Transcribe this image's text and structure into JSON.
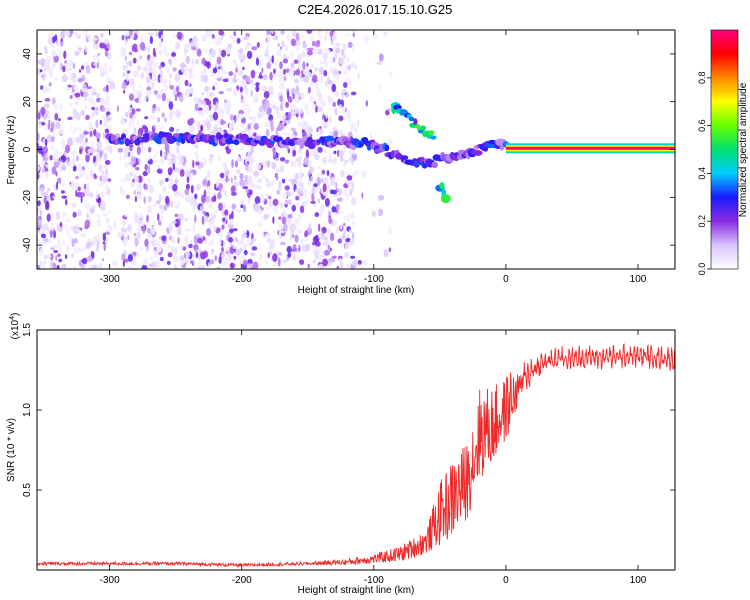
{
  "title": "C2E4.2026.017.15.10.G25",
  "chart_data": [
    {
      "type": "heatmap",
      "title": "C2E4.2026.017.15.10.G25",
      "xlabel": "Height of straight line (km)",
      "ylabel": "Frequency (Hz)",
      "xlim": [
        -355,
        128
      ],
      "ylim": [
        -50,
        50
      ],
      "xticks": [
        -300,
        -200,
        -100,
        0,
        100
      ],
      "yticks": [
        -40,
        -20,
        0,
        20,
        40
      ],
      "colorbar": {
        "label": "Normalized spectral amplitude",
        "range": [
          0,
          1
        ],
        "ticks": [
          0.0,
          0.2,
          0.4,
          0.6,
          0.8
        ],
        "colors": [
          "#ffffff",
          "#d8c4ff",
          "#8a2be2",
          "#1a1aff",
          "#00ccff",
          "#00e070",
          "#66ff00",
          "#ffff00",
          "#ff8800",
          "#ff0000",
          "#ff0080"
        ]
      },
      "features": [
        {
          "name": "noise_region",
          "x_range": [
            -355,
            -115
          ],
          "freq_range": [
            -50,
            50
          ],
          "amplitude": 0.1
        },
        {
          "name": "noise_gap",
          "x_range": [
            -300,
            -290
          ],
          "amplitude": 0.0
        },
        {
          "name": "main_ridge",
          "points": [
            [
              -300,
              4
            ],
            [
              -250,
              5
            ],
            [
              -200,
              4
            ],
            [
              -150,
              3
            ],
            [
              -120,
              3
            ],
            [
              -100,
              2
            ],
            [
              -80,
              -3
            ],
            [
              -60,
              -6
            ],
            [
              -40,
              -3
            ],
            [
              -20,
              0
            ],
            [
              -5,
              3
            ],
            [
              0,
              2
            ]
          ],
          "amplitude": 0.25
        },
        {
          "name": "upper_branch",
          "points": [
            [
              -85,
              18
            ],
            [
              -75,
              14
            ],
            [
              -65,
              9
            ],
            [
              -55,
              5
            ]
          ],
          "amplitude": 0.45
        },
        {
          "name": "lower_branch",
          "points": [
            [
              -50,
              -15
            ],
            [
              -45,
              -20
            ]
          ],
          "amplitude": 0.4
        },
        {
          "name": "carrier_line",
          "x_range": [
            0,
            128
          ],
          "freq": 0.5,
          "amplitude": 1.0
        }
      ]
    },
    {
      "type": "line",
      "xlabel": "Height of straight line (km)",
      "ylabel": "SNR (10 * v/v)",
      "y_multiplier": "(x10^4)",
      "y_multiplier_base": "(x10",
      "y_multiplier_exp": "4",
      "y_multiplier_close": ")",
      "xlim": [
        -355,
        128
      ],
      "ylim": [
        0,
        1.5
      ],
      "xticks": [
        -300,
        -200,
        -100,
        0,
        100
      ],
      "yticks": [
        0.5,
        1.0,
        1.5
      ],
      "series": [
        {
          "name": "SNR",
          "color": "#ee2a2a",
          "x": [
            -355,
            -300,
            -250,
            -200,
            -150,
            -120,
            -100,
            -80,
            -60,
            -50,
            -40,
            -30,
            -20,
            -10,
            0,
            10,
            20,
            30,
            40,
            60,
            80,
            100,
            128
          ],
          "y": [
            0.04,
            0.04,
            0.04,
            0.03,
            0.04,
            0.05,
            0.07,
            0.1,
            0.18,
            0.35,
            0.45,
            0.55,
            0.85,
            0.9,
            1.0,
            1.15,
            1.25,
            1.3,
            1.32,
            1.33,
            1.33,
            1.34,
            1.32
          ],
          "noise": [
            0.01,
            0.01,
            0.01,
            0.01,
            0.01,
            0.02,
            0.03,
            0.05,
            0.08,
            0.2,
            0.25,
            0.25,
            0.3,
            0.25,
            0.2,
            0.1,
            0.06,
            0.05,
            0.04,
            0.04,
            0.04,
            0.04,
            0.04
          ]
        }
      ]
    }
  ]
}
